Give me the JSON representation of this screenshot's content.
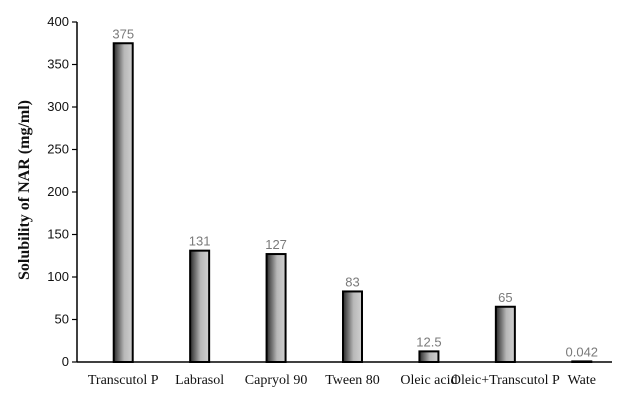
{
  "chart_data": {
    "type": "bar",
    "title": "",
    "xlabel": "",
    "ylabel": "Solubility of NAR (mg/ml)",
    "ylim": [
      0,
      400
    ],
    "yticks": [
      0,
      50,
      100,
      150,
      200,
      250,
      300,
      350,
      400
    ],
    "categories": [
      "Transcutol P",
      "Labrasol",
      "Capryol 90",
      "Tween 80",
      "Oleic acid",
      "Oleic+Transcutol  P",
      "Wate"
    ],
    "values": [
      375,
      131,
      127,
      83,
      12.5,
      65,
      0.042
    ],
    "data_labels": [
      "375",
      "131",
      "127",
      "83",
      "12.5",
      "65",
      "0.042"
    ],
    "grid": false,
    "legend": "none",
    "colors": {
      "bar_dark": "#2a2a2a",
      "bar_light": "#c4c4c4",
      "bar_border": "#000000",
      "value_label": "#7a7a7a"
    }
  }
}
